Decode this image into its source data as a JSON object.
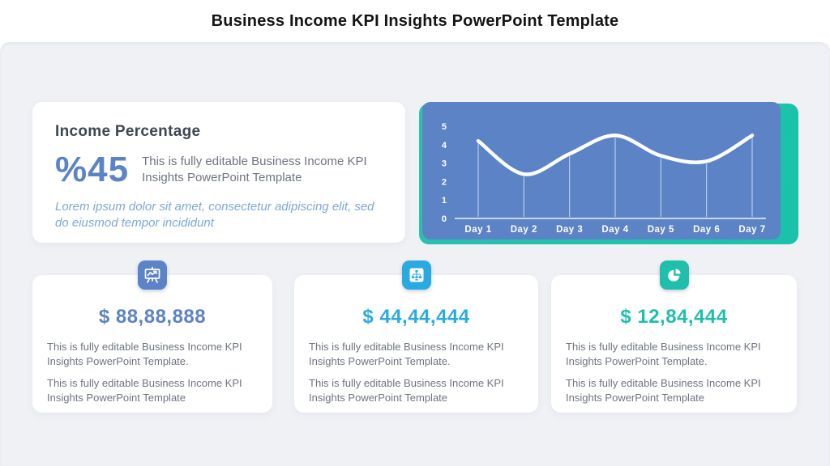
{
  "header": {
    "title": "Business Income KPI Insights PowerPoint Template"
  },
  "income_card": {
    "title": "Income Percentage",
    "percentage": "%45",
    "description": "This is fully editable Business Income KPI Insights PowerPoint Template",
    "quote": "Lorem ipsum dolor sit amet, consectetur adipiscing elit, sed do eiusmod tempor incididunt"
  },
  "chart_data": {
    "type": "line",
    "x": [
      "Day 1",
      "Day 2",
      "Day 3",
      "Day 4",
      "Day 5",
      "Day 6",
      "Day 7"
    ],
    "values": [
      4.2,
      2.4,
      3.5,
      4.5,
      3.4,
      3.1,
      4.5
    ],
    "yticks": [
      0,
      1,
      2,
      3,
      4,
      5
    ],
    "ylim": [
      0,
      5
    ],
    "title": "",
    "xlabel": "",
    "ylabel": "",
    "grid": "vertical-drop-lines",
    "legend": "none",
    "line_color": "#ffffff",
    "panel_color": "#5b83c6",
    "accent_color": "#1fbfab"
  },
  "kpi_cards": [
    {
      "icon": "presentation-chart-icon",
      "icon_color": "#5b83c6",
      "value": "$ 88,88,888",
      "value_color": "#5b83c6",
      "paragraphs": [
        "This is fully editable Business Income KPI Insights PowerPoint Template.",
        "This is fully editable Business Income KPI Insights PowerPoint Template"
      ]
    },
    {
      "icon": "org-chart-icon",
      "icon_color": "#29abe2",
      "value": "$ 44,44,444",
      "value_color": "#29abe2",
      "paragraphs": [
        "This is fully editable Business Income KPI Insights PowerPoint Template.",
        "This is fully editable Business Income KPI Insights PowerPoint Template"
      ]
    },
    {
      "icon": "pie-chart-icon",
      "icon_color": "#1fbfab",
      "value": "$ 12,84,444",
      "value_color": "#1fbfab",
      "paragraphs": [
        "This is fully editable Business Income KPI Insights PowerPoint Template.",
        "This is fully editable Business Income KPI Insights PowerPoint Template"
      ]
    }
  ],
  "colors": {
    "background": "#eff1f5",
    "card": "#ffffff",
    "blue": "#5b83c6",
    "cyan": "#29abe2",
    "teal": "#1fbfab",
    "text_dark": "#3d4653",
    "text_gray": "#6e7480",
    "quote_blue": "#7ea6db"
  }
}
